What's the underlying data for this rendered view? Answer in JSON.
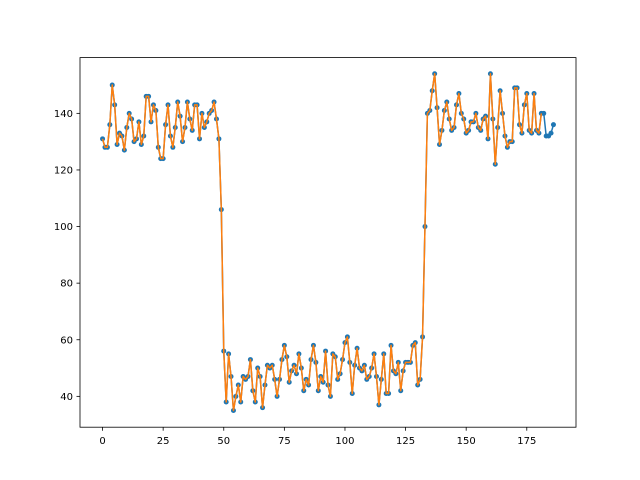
{
  "chart_data": {
    "type": "line",
    "x": [
      0,
      1,
      2,
      3,
      4,
      5,
      6,
      7,
      8,
      9,
      10,
      11,
      12,
      13,
      14,
      15,
      16,
      17,
      18,
      19,
      20,
      21,
      22,
      23,
      24,
      25,
      26,
      27,
      28,
      29,
      30,
      31,
      32,
      33,
      34,
      35,
      36,
      37,
      38,
      39,
      40,
      41,
      42,
      43,
      44,
      45,
      46,
      47,
      48,
      49,
      50,
      51,
      52,
      53,
      54,
      55,
      56,
      57,
      58,
      59,
      60,
      61,
      62,
      63,
      64,
      65,
      66,
      67,
      68,
      69,
      70,
      71,
      72,
      73,
      74,
      75,
      76,
      77,
      78,
      79,
      80,
      81,
      82,
      83,
      84,
      85,
      86,
      87,
      88,
      89,
      90,
      91,
      92,
      93,
      94,
      95,
      96,
      97,
      98,
      99,
      100,
      101,
      102,
      103,
      104,
      105,
      106,
      107,
      108,
      109,
      110,
      111,
      112,
      113,
      114,
      115,
      116,
      117,
      118,
      119,
      120,
      121,
      122,
      123,
      124,
      125,
      126,
      127,
      128,
      129,
      130,
      131,
      132,
      133,
      134,
      135,
      136,
      137,
      138,
      139,
      140,
      141,
      142,
      143,
      144,
      145,
      146,
      147,
      148,
      149,
      150,
      151,
      152,
      153,
      154,
      155,
      156,
      157,
      158,
      159,
      160,
      161,
      162,
      163,
      164,
      165,
      166,
      167,
      168,
      169,
      170,
      171,
      172,
      173,
      174,
      175,
      176,
      177,
      178,
      179,
      180,
      181,
      182,
      183,
      184,
      185,
      186
    ],
    "series": [
      {
        "color": "#1f77b4",
        "marker": true,
        "values": [
          131,
          128,
          128,
          136,
          150,
          143,
          129,
          133,
          132,
          127,
          135,
          140,
          138,
          130,
          131,
          137,
          129,
          132,
          146,
          146,
          137,
          143,
          141,
          128,
          124,
          124,
          136,
          143,
          132,
          128,
          135,
          144,
          139,
          130,
          135,
          144,
          138,
          134,
          143,
          143,
          131,
          140,
          135,
          137,
          140,
          141,
          144,
          138,
          131,
          106,
          56,
          38,
          55,
          47,
          35,
          40,
          44,
          38,
          47,
          46,
          47,
          53,
          42,
          38,
          50,
          47,
          36,
          44,
          51,
          50,
          51,
          46,
          40,
          46,
          53,
          58,
          54,
          45,
          49,
          51,
          48,
          55,
          50,
          42,
          46,
          44,
          53,
          58,
          52,
          42,
          47,
          45,
          56,
          44,
          40,
          55,
          54,
          46,
          48,
          53,
          59,
          61,
          52,
          41,
          51,
          57,
          50,
          49,
          51,
          46,
          47,
          50,
          55,
          47,
          37,
          46,
          55,
          41,
          41,
          58,
          49,
          48,
          52,
          42,
          49,
          52,
          52,
          52,
          58,
          59,
          44,
          46,
          61,
          100,
          140,
          141,
          148,
          154,
          142,
          129,
          134,
          141,
          144,
          138,
          134,
          135,
          143,
          147,
          140,
          138,
          133,
          134,
          137,
          137,
          140,
          135,
          134,
          138,
          139,
          131,
          154,
          138,
          122,
          135,
          148,
          140,
          132,
          128,
          130,
          130,
          149,
          149,
          136,
          133,
          143,
          147,
          134,
          133,
          147,
          134,
          133,
          140,
          140,
          132,
          132,
          133,
          136
        ]
      },
      {
        "color": "#ff7f0e",
        "marker": false,
        "values": [
          131,
          128,
          128,
          136,
          150,
          143,
          129,
          133,
          132,
          127,
          135,
          140,
          138,
          130,
          131,
          137,
          129,
          132,
          146,
          146,
          137,
          143,
          141,
          128,
          124,
          124,
          136,
          143,
          132,
          128,
          135,
          144,
          139,
          130,
          135,
          144,
          138,
          134,
          143,
          143,
          131,
          140,
          135,
          137,
          140,
          141,
          144,
          138,
          131,
          106,
          56,
          38,
          55,
          47,
          35,
          40,
          44,
          38,
          47,
          46,
          47,
          53,
          42,
          38,
          50,
          47,
          36,
          44,
          51,
          50,
          51,
          46,
          40,
          46,
          53,
          58,
          54,
          45,
          49,
          51,
          48,
          55,
          50,
          42,
          46,
          44,
          53,
          58,
          52,
          42,
          47,
          45,
          56,
          44,
          40,
          55,
          54,
          46,
          48,
          53,
          59,
          61,
          52,
          41,
          51,
          57,
          50,
          49,
          51,
          46,
          47,
          50,
          55,
          47,
          37,
          46,
          55,
          41,
          41,
          58,
          49,
          48,
          52,
          42,
          49,
          52,
          52,
          52,
          58,
          59,
          44,
          46,
          61,
          100,
          140,
          141,
          148,
          154,
          142,
          129,
          134,
          141,
          144,
          138,
          134,
          135,
          143,
          147,
          140,
          138,
          133,
          134,
          137,
          137,
          140,
          135,
          134,
          138,
          139,
          131,
          154,
          138,
          122,
          135,
          148,
          140,
          132,
          128,
          130,
          130,
          149,
          149,
          136,
          133,
          143,
          147,
          134,
          133,
          147,
          134,
          133,
          140,
          null,
          null,
          null,
          null,
          null
        ]
      }
    ],
    "xlim": [
      -9.3,
      195.3
    ],
    "xticks": [
      0,
      25,
      50,
      75,
      100,
      125,
      150,
      175
    ],
    "ylim": [
      29.1,
      159.7
    ],
    "yticks": [
      40,
      60,
      80,
      100,
      120,
      140
    ]
  }
}
